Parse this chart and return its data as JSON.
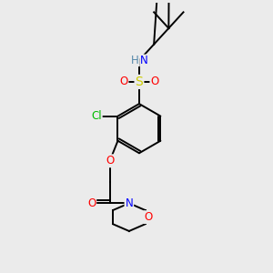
{
  "background_color": "#ebebeb",
  "atom_colors": {
    "C": "#000000",
    "N": "#0000ff",
    "O": "#ff0000",
    "S": "#cccc00",
    "Cl": "#00bb00",
    "H": "#5588aa"
  },
  "figsize": [
    3.0,
    3.0
  ],
  "dpi": 100,
  "lw": 1.4,
  "fs": 8.5
}
